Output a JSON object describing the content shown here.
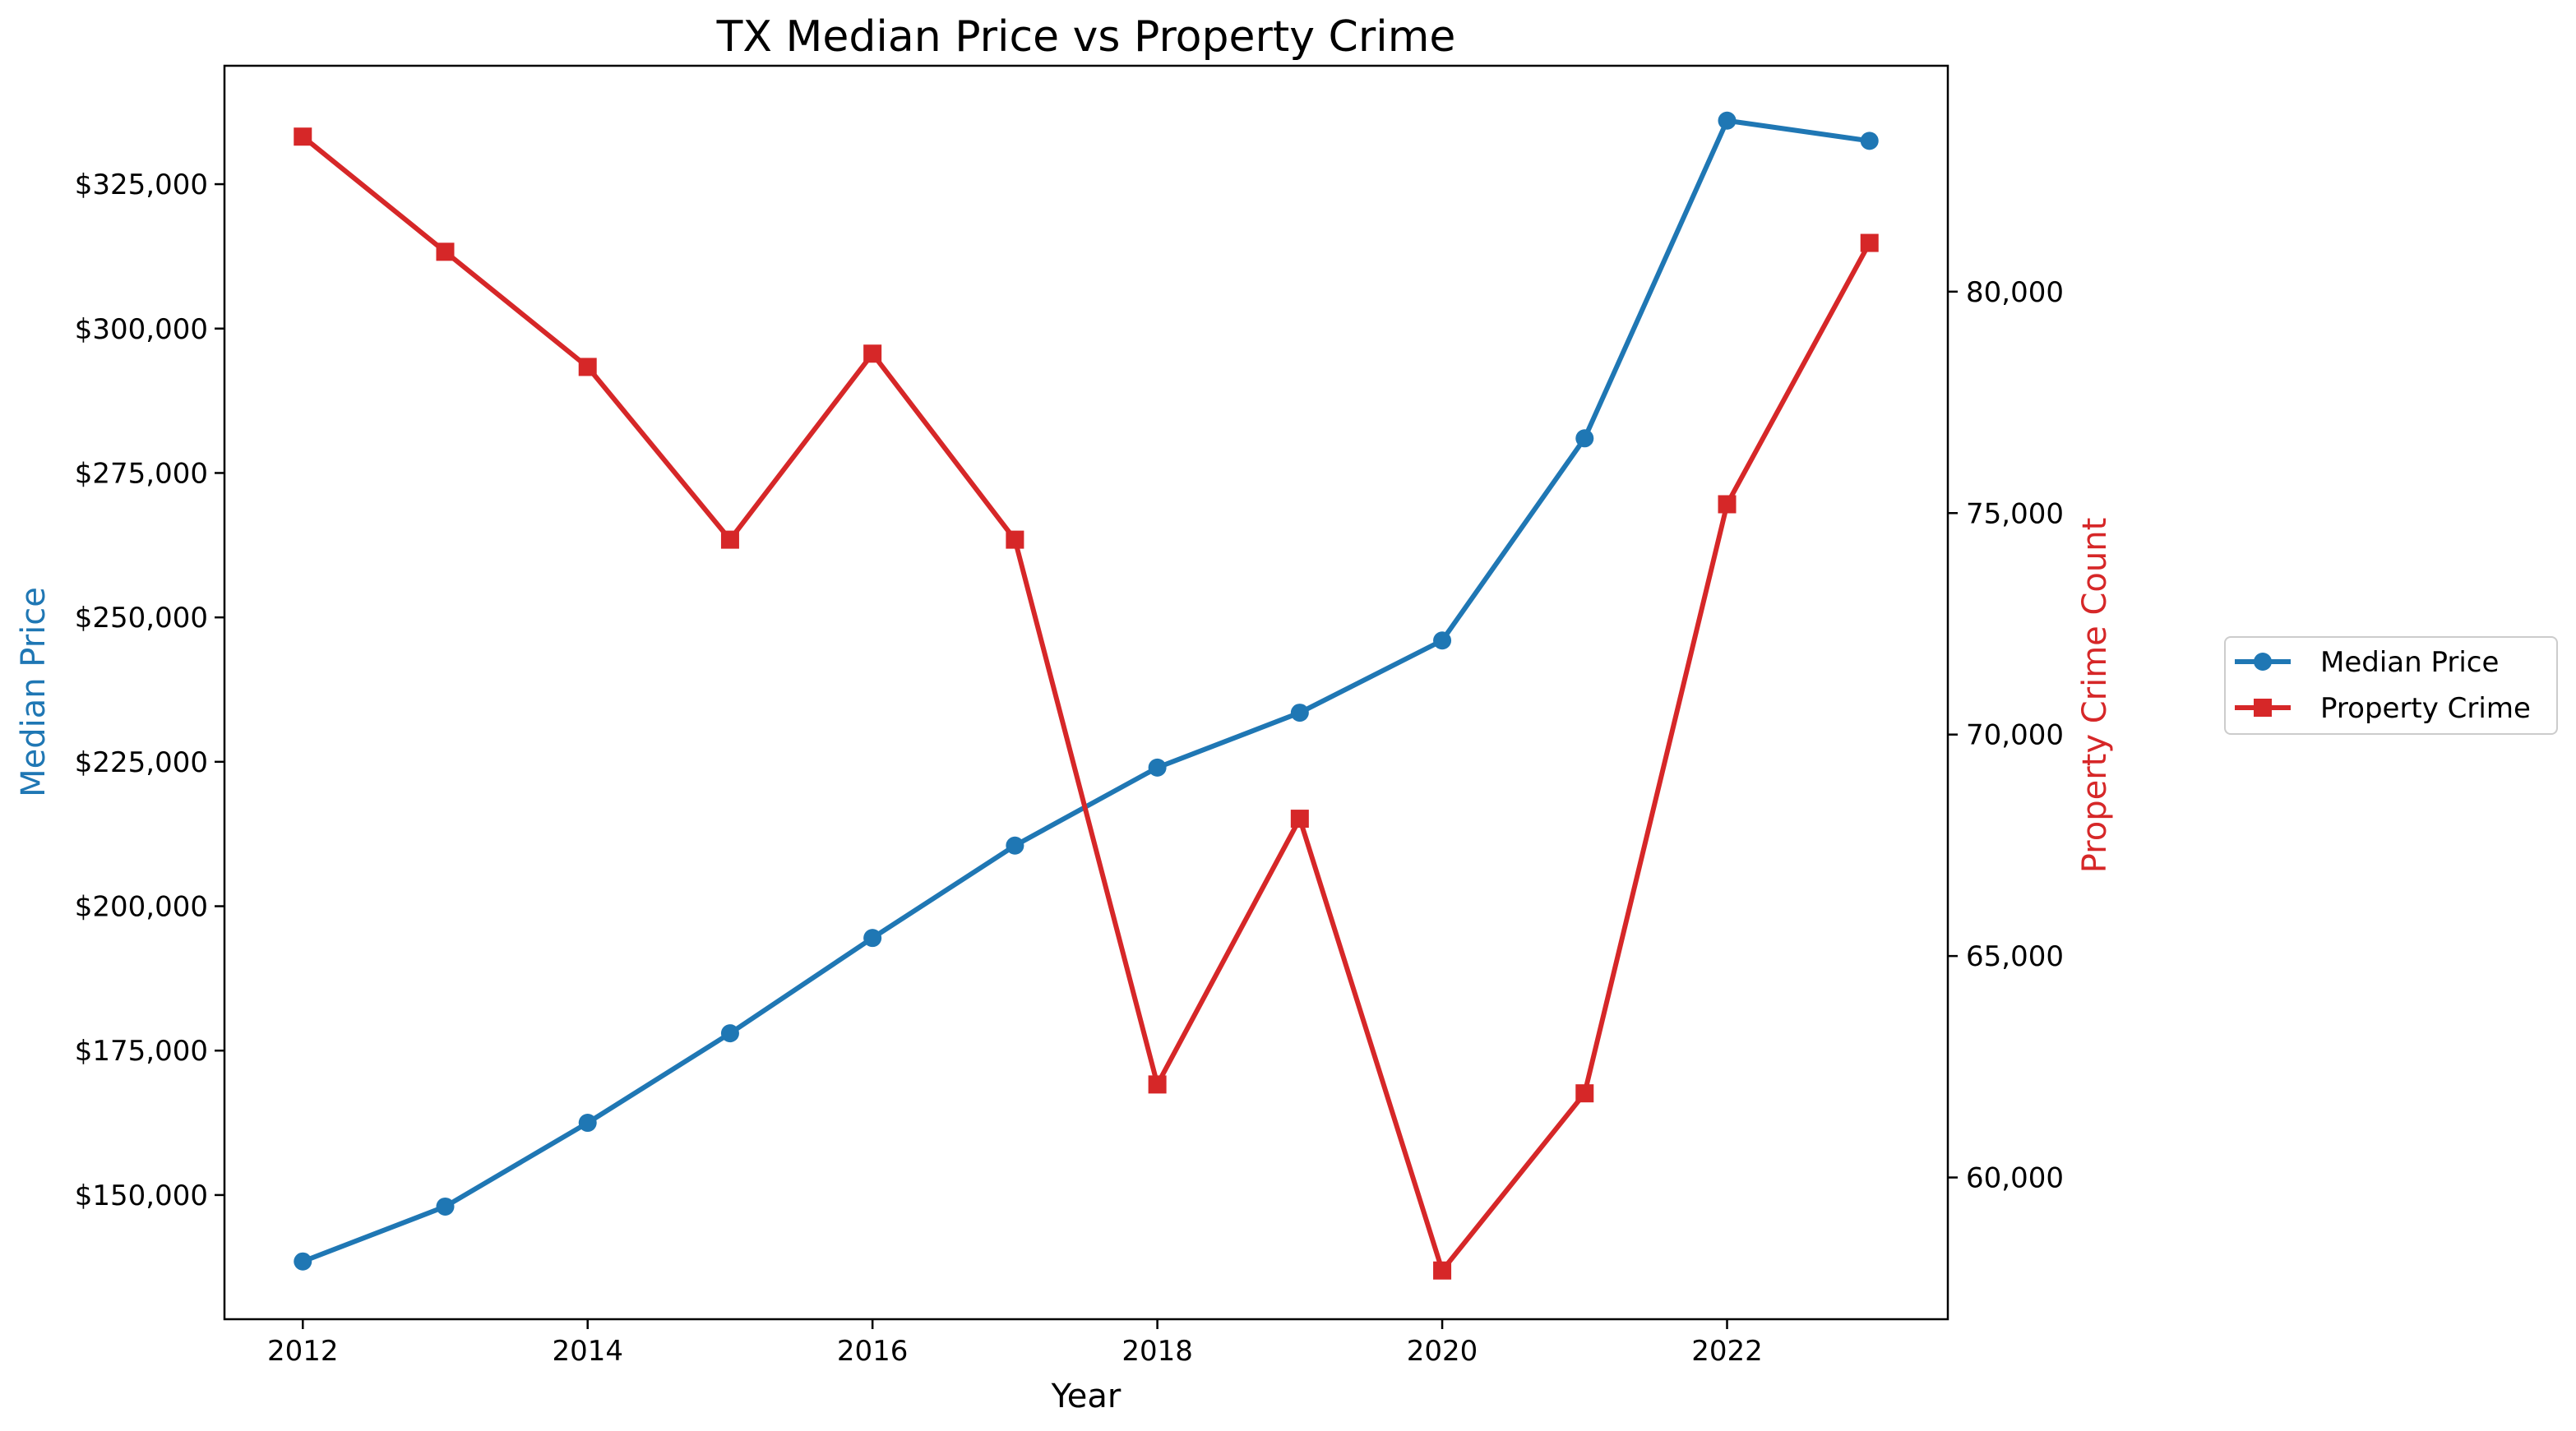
{
  "chart_data": {
    "type": "line",
    "title": "TX Median Price vs Property Crime",
    "xlabel": "Year",
    "y1label": "Median Price",
    "y2label": "Property Crime Count",
    "x": [
      2012,
      2013,
      2014,
      2015,
      2016,
      2017,
      2018,
      2019,
      2020,
      2021,
      2022,
      2023
    ],
    "xlim": [
      2011.45,
      2023.55
    ],
    "xticks": [
      2012,
      2014,
      2016,
      2018,
      2020,
      2022
    ],
    "xtick_labels": [
      "2012",
      "2014",
      "2016",
      "2018",
      "2020",
      "2022"
    ],
    "y1lim": [
      128500,
      345500
    ],
    "y1ticks": [
      150000,
      175000,
      200000,
      225000,
      250000,
      275000,
      300000,
      325000
    ],
    "y1tick_labels": [
      "$150,000",
      "$175,000",
      "$200,000",
      "$225,000",
      "$250,000",
      "$275,000",
      "$300,000",
      "$325,000"
    ],
    "y2lim": [
      56800,
      85100
    ],
    "y2ticks": [
      60000,
      65000,
      70000,
      75000,
      80000
    ],
    "y2tick_labels": [
      "60,000",
      "65,000",
      "70,000",
      "75,000",
      "80,000"
    ],
    "grid": false,
    "legend_position": "outside right",
    "series": [
      {
        "name": "Median Price",
        "axis": "left",
        "color": "#1f77b4",
        "marker": "circle",
        "values": [
          138500,
          148000,
          162500,
          178000,
          194500,
          210500,
          224000,
          233500,
          246000,
          281000,
          336000,
          332500
        ]
      },
      {
        "name": "Property Crime",
        "axis": "right",
        "color": "#d62728",
        "marker": "square",
        "values": [
          83500,
          80900,
          78300,
          74400,
          78600,
          74400,
          62100,
          68100,
          57900,
          61900,
          75200,
          81100
        ]
      }
    ]
  }
}
